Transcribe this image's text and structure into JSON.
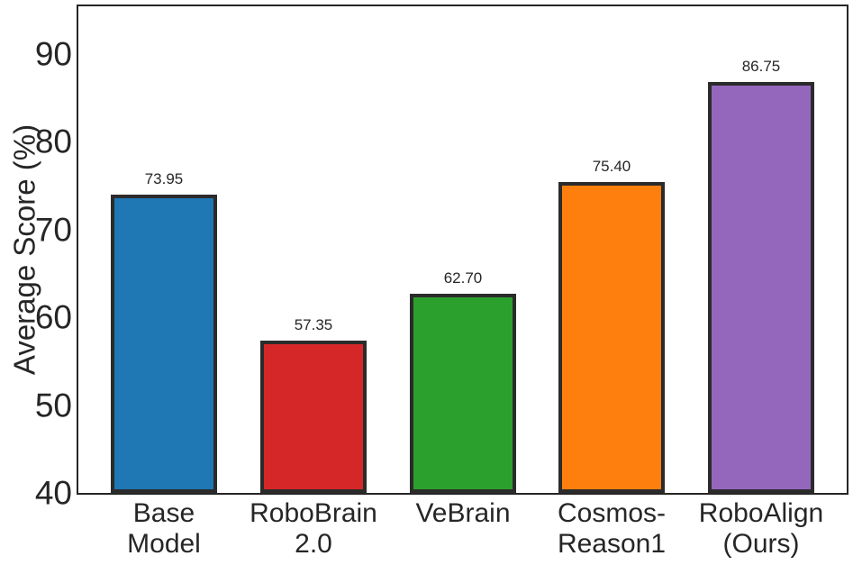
{
  "chart_data": {
    "type": "bar",
    "title": "",
    "xlabel": "",
    "ylabel": "Average Score (%)",
    "categories": [
      "Base\nModel",
      "RoboBrain\n2.0",
      "VeBrain",
      "Cosmos-\nReason1",
      "RoboAlign\n(Ours)"
    ],
    "category_names": [
      "base-model",
      "robobrain-2-0",
      "vebrain",
      "cosmos-reason1",
      "roboalign-ours"
    ],
    "values": [
      73.95,
      57.35,
      62.7,
      75.4,
      86.75
    ],
    "value_labels": [
      "73.95",
      "57.35",
      "62.70",
      "75.40",
      "86.75"
    ],
    "bar_colors": [
      "#1f77b4",
      "#d62728",
      "#2ca02c",
      "#ff7f0e",
      "#9467bd"
    ],
    "bar_edge_color": "#2b2b2b",
    "ylim": [
      40,
      95.4
    ],
    "yticks": [
      40,
      50,
      60,
      70,
      80,
      90
    ],
    "ytick_labels": [
      "40",
      "50",
      "60",
      "70",
      "80",
      "90"
    ],
    "grid": false,
    "legend": "none",
    "background_color": "#ffffff",
    "text_color": "#262626",
    "spine_color": "#262626"
  }
}
